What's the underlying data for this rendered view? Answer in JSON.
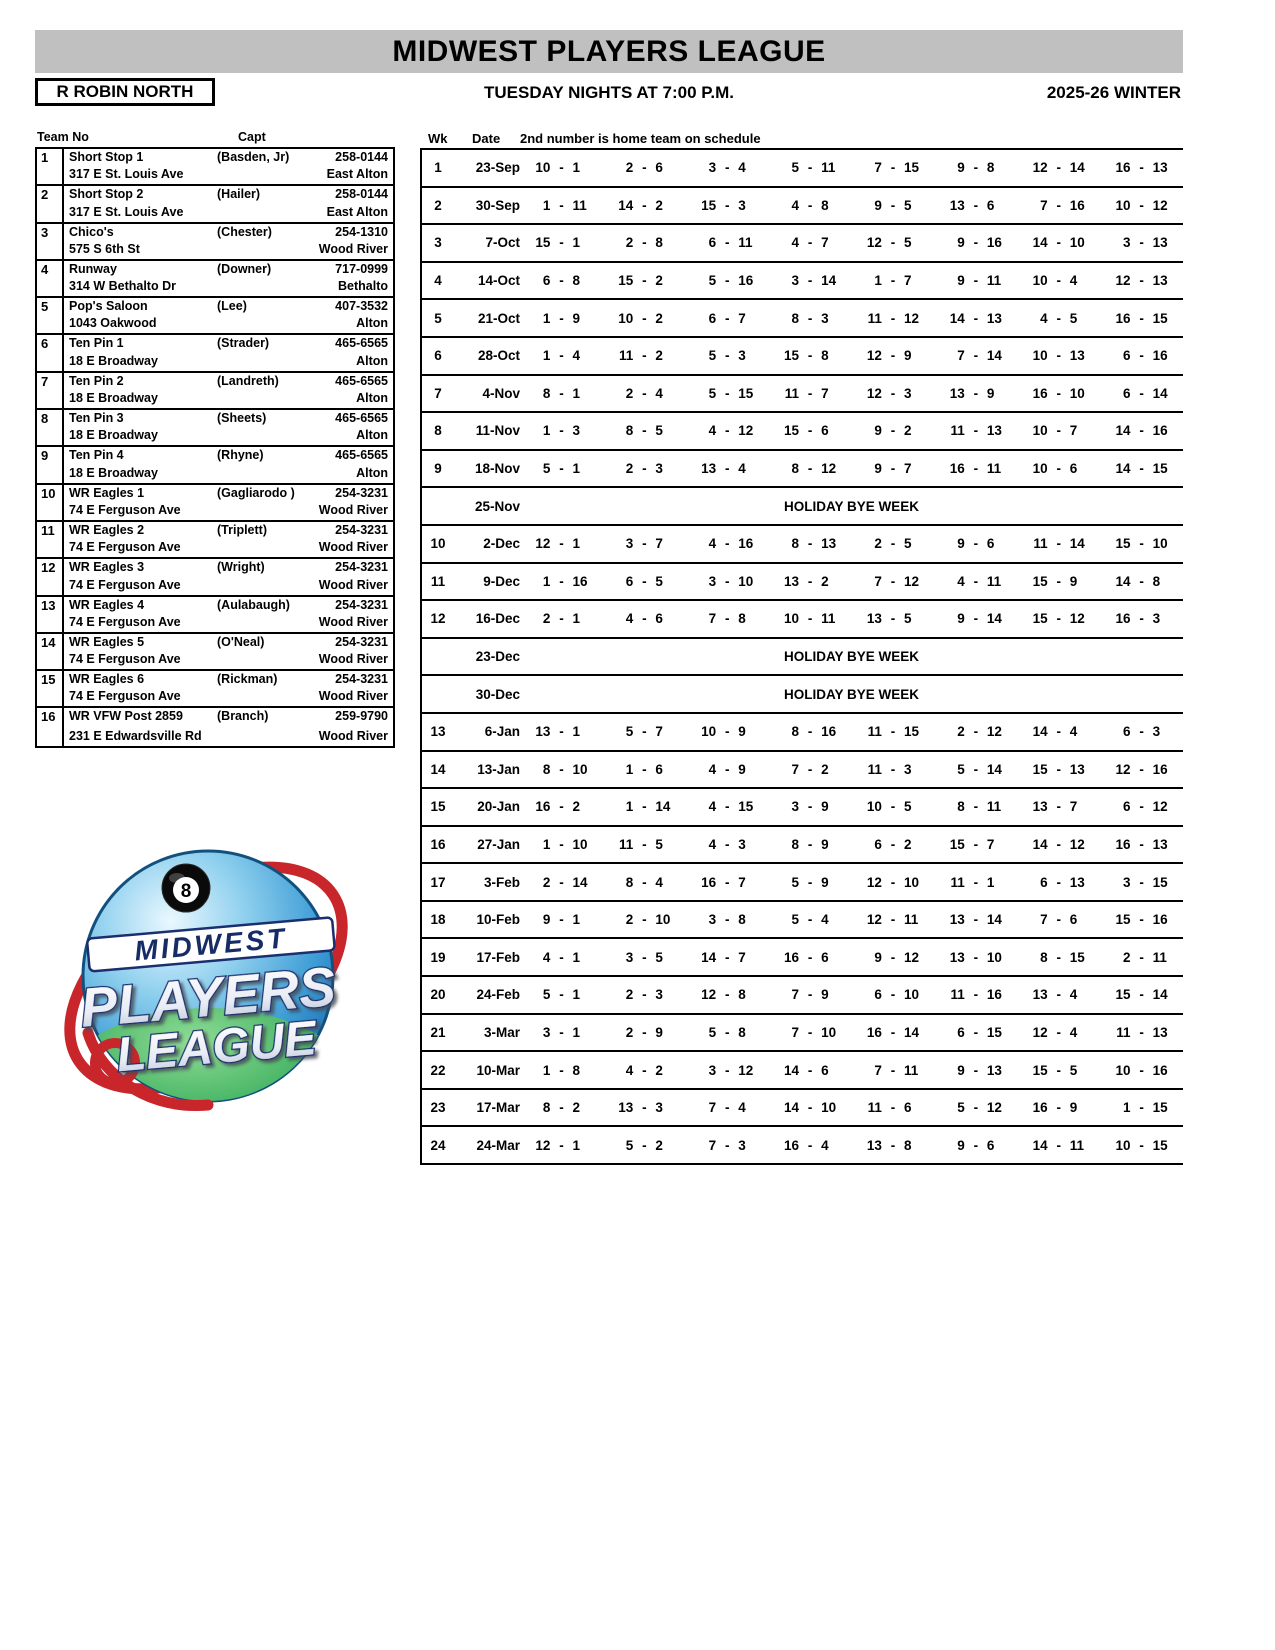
{
  "header": {
    "title": "MIDWEST PLAYERS LEAGUE",
    "division": "R ROBIN NORTH",
    "schedule_time": "TUESDAY NIGHTS AT 7:00 P.M.",
    "season": "2025-26 WINTER"
  },
  "team_table": {
    "col_team": "Team No",
    "col_capt": "Capt",
    "teams": [
      {
        "no": "1",
        "name": "Short Stop 1",
        "capt": "(Basden, Jr)",
        "phone": "258-0144",
        "address": "317 E St. Louis Ave",
        "city": "East Alton"
      },
      {
        "no": "2",
        "name": "Short Stop 2",
        "capt": "(Hailer)",
        "phone": "258-0144",
        "address": "317 E St. Louis Ave",
        "city": "East Alton"
      },
      {
        "no": "3",
        "name": "Chico's",
        "capt": "(Chester)",
        "phone": "254-1310",
        "address": "575 S 6th St",
        "city": "Wood River"
      },
      {
        "no": "4",
        "name": "Runway",
        "capt": "(Downer)",
        "phone": "717-0999",
        "address": "314 W Bethalto Dr",
        "city": "Bethalto"
      },
      {
        "no": "5",
        "name": "Pop's Saloon",
        "capt": "(Lee)",
        "phone": "407-3532",
        "address": "1043 Oakwood",
        "city": "Alton"
      },
      {
        "no": "6",
        "name": "Ten Pin 1",
        "capt": "(Strader)",
        "phone": "465-6565",
        "address": "18 E  Broadway",
        "city": "Alton"
      },
      {
        "no": "7",
        "name": "Ten Pin 2",
        "capt": "(Landreth)",
        "phone": "465-6565",
        "address": "18 E  Broadway",
        "city": "Alton"
      },
      {
        "no": "8",
        "name": "Ten Pin 3",
        "capt": "(Sheets)",
        "phone": "465-6565",
        "address": "18 E Broadway",
        "city": "Alton"
      },
      {
        "no": "9",
        "name": "Ten Pin 4",
        "capt": "(Rhyne)",
        "phone": "465-6565",
        "address": "18 E Broadway",
        "city": "Alton"
      },
      {
        "no": "10",
        "name": "WR Eagles 1",
        "capt": "(Gagliarodo )",
        "phone": "254-3231",
        "address": "74 E Ferguson Ave",
        "city": "Wood River"
      },
      {
        "no": "11",
        "name": "WR Eagles 2",
        "capt": "(Triplett)",
        "phone": "254-3231",
        "address": "74 E Ferguson Ave",
        "city": "Wood River"
      },
      {
        "no": "12",
        "name": "WR Eagles 3",
        "capt": "(Wright)",
        "phone": "254-3231",
        "address": "74 E Ferguson Ave",
        "city": "Wood River"
      },
      {
        "no": "13",
        "name": "WR Eagles 4",
        "capt": "(Aulabaugh)",
        "phone": "254-3231",
        "address": "74 E Ferguson Ave",
        "city": "Wood River"
      },
      {
        "no": "14",
        "name": "WR Eagles 5",
        "capt": "(O'Neal)",
        "phone": "254-3231",
        "address": "74 E Ferguson Ave",
        "city": "Wood River"
      },
      {
        "no": "15",
        "name": "WR Eagles 6",
        "capt": "(Rickman)",
        "phone": "254-3231",
        "address": "74 E Ferguson Ave",
        "city": "Wood River"
      },
      {
        "no": "16",
        "name": "WR VFW Post 2859",
        "capt": "(Branch)",
        "phone": "259-9790",
        "address": "231 E Edwardsville Rd",
        "city": "Wood River"
      }
    ]
  },
  "schedule": {
    "col_wk": "Wk",
    "col_date": "Date",
    "note": "2nd number is home team on schedule",
    "bye_label": "HOLIDAY BYE WEEK",
    "dash": "-",
    "rows": [
      {
        "wk": "1",
        "date": "23-Sep",
        "matches": [
          [
            10,
            1
          ],
          [
            2,
            6
          ],
          [
            3,
            4
          ],
          [
            5,
            11
          ],
          [
            7,
            15
          ],
          [
            9,
            8
          ],
          [
            12,
            14
          ],
          [
            16,
            13
          ]
        ]
      },
      {
        "wk": "2",
        "date": "30-Sep",
        "matches": [
          [
            1,
            11
          ],
          [
            14,
            2
          ],
          [
            15,
            3
          ],
          [
            4,
            8
          ],
          [
            9,
            5
          ],
          [
            13,
            6
          ],
          [
            7,
            16
          ],
          [
            10,
            12
          ]
        ]
      },
      {
        "wk": "3",
        "date": "7-Oct",
        "matches": [
          [
            15,
            1
          ],
          [
            2,
            8
          ],
          [
            6,
            11
          ],
          [
            4,
            7
          ],
          [
            12,
            5
          ],
          [
            9,
            16
          ],
          [
            14,
            10
          ],
          [
            3,
            13
          ]
        ]
      },
      {
        "wk": "4",
        "date": "14-Oct",
        "matches": [
          [
            6,
            8
          ],
          [
            15,
            2
          ],
          [
            5,
            16
          ],
          [
            3,
            14
          ],
          [
            1,
            7
          ],
          [
            9,
            11
          ],
          [
            10,
            4
          ],
          [
            12,
            13
          ]
        ]
      },
      {
        "wk": "5",
        "date": "21-Oct",
        "matches": [
          [
            1,
            9
          ],
          [
            10,
            2
          ],
          [
            6,
            7
          ],
          [
            8,
            3
          ],
          [
            11,
            12
          ],
          [
            14,
            13
          ],
          [
            4,
            5
          ],
          [
            16,
            15
          ]
        ]
      },
      {
        "wk": "6",
        "date": "28-Oct",
        "matches": [
          [
            1,
            4
          ],
          [
            11,
            2
          ],
          [
            5,
            3
          ],
          [
            15,
            8
          ],
          [
            12,
            9
          ],
          [
            7,
            14
          ],
          [
            10,
            13
          ],
          [
            6,
            16
          ]
        ]
      },
      {
        "wk": "7",
        "date": "4-Nov",
        "matches": [
          [
            8,
            1
          ],
          [
            2,
            4
          ],
          [
            5,
            15
          ],
          [
            11,
            7
          ],
          [
            12,
            3
          ],
          [
            13,
            9
          ],
          [
            16,
            10
          ],
          [
            6,
            14
          ]
        ]
      },
      {
        "wk": "8",
        "date": "11-Nov",
        "matches": [
          [
            1,
            3
          ],
          [
            8,
            5
          ],
          [
            4,
            12
          ],
          [
            15,
            6
          ],
          [
            9,
            2
          ],
          [
            11,
            13
          ],
          [
            10,
            7
          ],
          [
            14,
            16
          ]
        ]
      },
      {
        "wk": "9",
        "date": "18-Nov",
        "matches": [
          [
            5,
            1
          ],
          [
            2,
            3
          ],
          [
            13,
            4
          ],
          [
            8,
            12
          ],
          [
            9,
            7
          ],
          [
            16,
            11
          ],
          [
            10,
            6
          ],
          [
            14,
            15
          ]
        ]
      },
      {
        "wk": "",
        "date": "25-Nov",
        "bye": true
      },
      {
        "wk": "10",
        "date": "2-Dec",
        "matches": [
          [
            12,
            1
          ],
          [
            3,
            7
          ],
          [
            4,
            16
          ],
          [
            8,
            13
          ],
          [
            2,
            5
          ],
          [
            9,
            6
          ],
          [
            11,
            14
          ],
          [
            15,
            10
          ]
        ]
      },
      {
        "wk": "11",
        "date": "9-Dec",
        "matches": [
          [
            1,
            16
          ],
          [
            6,
            5
          ],
          [
            3,
            10
          ],
          [
            13,
            2
          ],
          [
            7,
            12
          ],
          [
            4,
            11
          ],
          [
            15,
            9
          ],
          [
            14,
            8
          ]
        ]
      },
      {
        "wk": "12",
        "date": "16-Dec",
        "matches": [
          [
            2,
            1
          ],
          [
            4,
            6
          ],
          [
            7,
            8
          ],
          [
            10,
            11
          ],
          [
            13,
            5
          ],
          [
            9,
            14
          ],
          [
            15,
            12
          ],
          [
            16,
            3
          ]
        ]
      },
      {
        "wk": "",
        "date": "23-Dec",
        "bye": true
      },
      {
        "wk": "",
        "date": "30-Dec",
        "bye": true
      },
      {
        "wk": "13",
        "date": "6-Jan",
        "matches": [
          [
            13,
            1
          ],
          [
            5,
            7
          ],
          [
            10,
            9
          ],
          [
            8,
            16
          ],
          [
            11,
            15
          ],
          [
            2,
            12
          ],
          [
            14,
            4
          ],
          [
            6,
            3
          ]
        ]
      },
      {
        "wk": "14",
        "date": "13-Jan",
        "matches": [
          [
            8,
            10
          ],
          [
            1,
            6
          ],
          [
            4,
            9
          ],
          [
            7,
            2
          ],
          [
            11,
            3
          ],
          [
            5,
            14
          ],
          [
            15,
            13
          ],
          [
            12,
            16
          ]
        ]
      },
      {
        "wk": "15",
        "date": "20-Jan",
        "matches": [
          [
            16,
            2
          ],
          [
            1,
            14
          ],
          [
            4,
            15
          ],
          [
            3,
            9
          ],
          [
            10,
            5
          ],
          [
            8,
            11
          ],
          [
            13,
            7
          ],
          [
            6,
            12
          ]
        ]
      },
      {
        "wk": "16",
        "date": "27-Jan",
        "matches": [
          [
            1,
            10
          ],
          [
            11,
            5
          ],
          [
            4,
            3
          ],
          [
            8,
            9
          ],
          [
            6,
            2
          ],
          [
            15,
            7
          ],
          [
            14,
            12
          ],
          [
            16,
            13
          ]
        ]
      },
      {
        "wk": "17",
        "date": "3-Feb",
        "matches": [
          [
            2,
            14
          ],
          [
            8,
            4
          ],
          [
            16,
            7
          ],
          [
            5,
            9
          ],
          [
            12,
            10
          ],
          [
            11,
            1
          ],
          [
            6,
            13
          ],
          [
            3,
            15
          ]
        ]
      },
      {
        "wk": "18",
        "date": "10-Feb",
        "matches": [
          [
            9,
            1
          ],
          [
            2,
            10
          ],
          [
            3,
            8
          ],
          [
            5,
            4
          ],
          [
            12,
            11
          ],
          [
            13,
            14
          ],
          [
            7,
            6
          ],
          [
            15,
            16
          ]
        ]
      },
      {
        "wk": "19",
        "date": "17-Feb",
        "matches": [
          [
            4,
            1
          ],
          [
            3,
            5
          ],
          [
            14,
            7
          ],
          [
            16,
            6
          ],
          [
            9,
            12
          ],
          [
            13,
            10
          ],
          [
            8,
            15
          ],
          [
            2,
            11
          ]
        ]
      },
      {
        "wk": "20",
        "date": "24-Feb",
        "matches": [
          [
            5,
            1
          ],
          [
            2,
            3
          ],
          [
            12,
            8
          ],
          [
            7,
            9
          ],
          [
            6,
            10
          ],
          [
            11,
            16
          ],
          [
            13,
            4
          ],
          [
            15,
            14
          ]
        ]
      },
      {
        "wk": "21",
        "date": "3-Mar",
        "matches": [
          [
            3,
            1
          ],
          [
            2,
            9
          ],
          [
            5,
            8
          ],
          [
            7,
            10
          ],
          [
            16,
            14
          ],
          [
            6,
            15
          ],
          [
            12,
            4
          ],
          [
            11,
            13
          ]
        ]
      },
      {
        "wk": "22",
        "date": "10-Mar",
        "matches": [
          [
            1,
            8
          ],
          [
            4,
            2
          ],
          [
            3,
            12
          ],
          [
            14,
            6
          ],
          [
            7,
            11
          ],
          [
            9,
            13
          ],
          [
            15,
            5
          ],
          [
            10,
            16
          ]
        ]
      },
      {
        "wk": "23",
        "date": "17-Mar",
        "matches": [
          [
            8,
            2
          ],
          [
            13,
            3
          ],
          [
            7,
            4
          ],
          [
            14,
            10
          ],
          [
            11,
            6
          ],
          [
            5,
            12
          ],
          [
            16,
            9
          ],
          [
            1,
            15
          ]
        ]
      },
      {
        "wk": "24",
        "date": "24-Mar",
        "matches": [
          [
            12,
            1
          ],
          [
            5,
            2
          ],
          [
            7,
            3
          ],
          [
            16,
            4
          ],
          [
            13,
            8
          ],
          [
            9,
            6
          ],
          [
            14,
            11
          ],
          [
            10,
            15
          ]
        ]
      }
    ]
  },
  "logo": {
    "text_top": "MIDWEST",
    "text_mid": "PLAYERS",
    "text_bottom": "LEAGUE",
    "ball_number": "8"
  },
  "colors": {
    "banner_gray": "#c0c0c0",
    "text": "#000000",
    "logo_navy": "#1b2f6e",
    "logo_blue": "#2e8fd0",
    "logo_green": "#1a9245",
    "logo_red": "#c8262b"
  }
}
